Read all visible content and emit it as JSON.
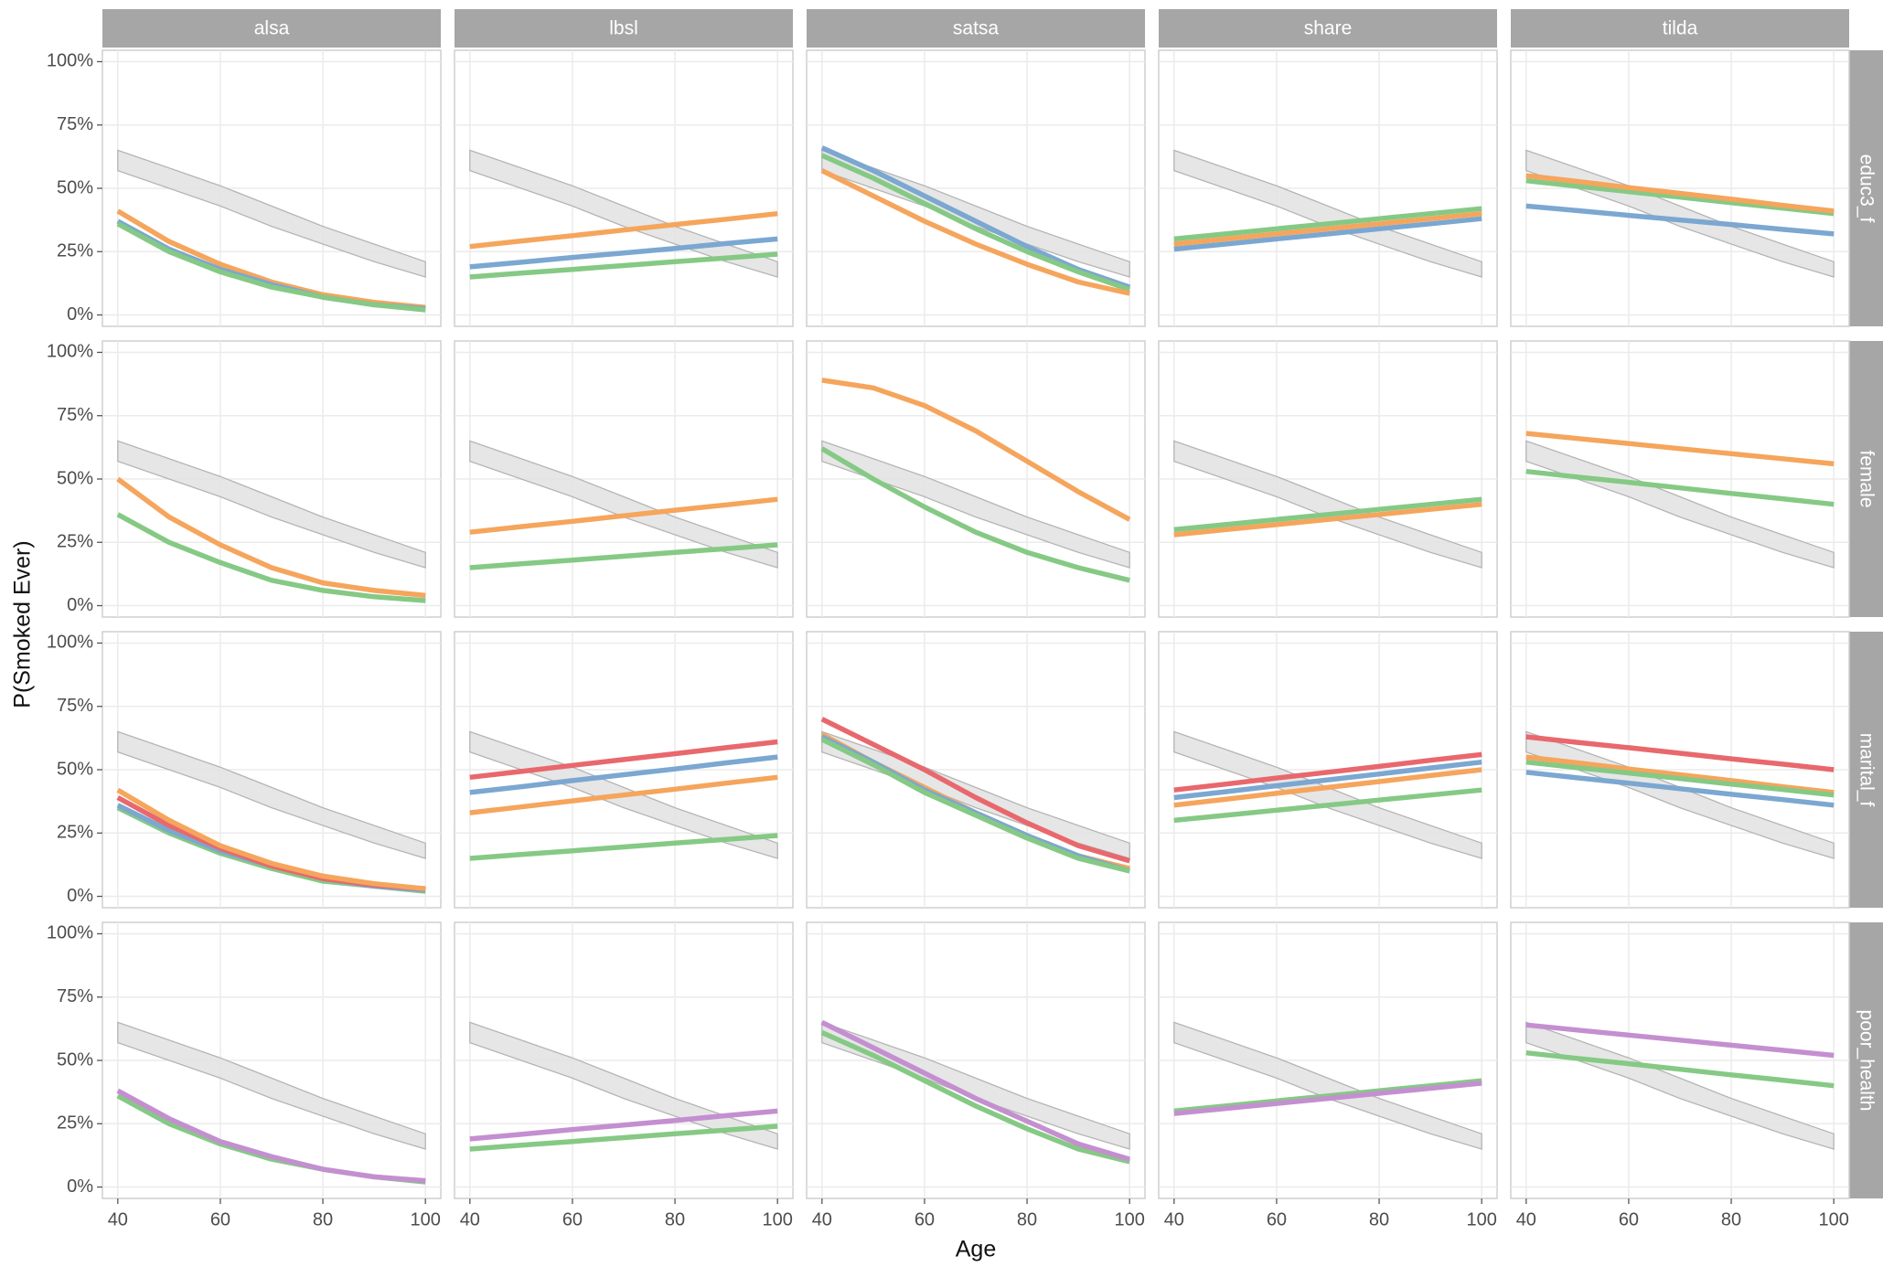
{
  "chart_data": {
    "type": "line",
    "xlabel": "Age",
    "ylabel": "P(Smoked Ever)",
    "columns": [
      "alsa",
      "lbsl",
      "satsa",
      "share",
      "tilda"
    ],
    "rows": [
      "educ3_f",
      "female",
      "marital_f",
      "poor_health"
    ],
    "xlim": [
      37,
      103
    ],
    "ylim": [
      -4.5,
      104.5
    ],
    "xticks": [
      40,
      60,
      80,
      100
    ],
    "yticks": [
      {
        "value": 0,
        "label": "0%"
      },
      {
        "value": 25,
        "label": "25%"
      },
      {
        "value": 50,
        "label": "50%"
      },
      {
        "value": 75,
        "label": "75%"
      },
      {
        "value": 100,
        "label": "100%"
      }
    ],
    "grid": true,
    "x": [
      40,
      50,
      60,
      70,
      80,
      90,
      100
    ],
    "band": {
      "color": "#e3e3e3",
      "lower": [
        57,
        50,
        43,
        35,
        28,
        21,
        15
      ],
      "upper": [
        65,
        58,
        51,
        43,
        35,
        28,
        21
      ]
    },
    "panels": [
      [
        {
          "series": [
            {
              "color": "#f5a55c",
              "values": [
                41,
                29,
                20,
                13,
                8,
                5,
                3
              ]
            },
            {
              "color": "#7ba7d1",
              "values": [
                37,
                26,
                18,
                12,
                7,
                4,
                2.5
              ]
            },
            {
              "color": "#85c985",
              "values": [
                36,
                25,
                17,
                11,
                7,
                4,
                2
              ]
            }
          ]
        },
        {
          "series": [
            {
              "color": "#f5a55c",
              "values": [
                27,
                29.2,
                31.3,
                33.5,
                35.7,
                37.8,
                40
              ]
            },
            {
              "color": "#7ba7d1",
              "values": [
                19,
                20.8,
                22.7,
                24.5,
                26.3,
                28.2,
                30
              ]
            },
            {
              "color": "#85c985",
              "values": [
                15,
                16.5,
                18,
                19.5,
                21,
                22.5,
                24
              ]
            }
          ]
        },
        {
          "series": [
            {
              "color": "#7ba7d1",
              "values": [
                66,
                57,
                47,
                37,
                27,
                18,
                11
              ]
            },
            {
              "color": "#85c985",
              "values": [
                63,
                54,
                44,
                34,
                25,
                17,
                10
              ]
            },
            {
              "color": "#f5a55c",
              "values": [
                57,
                47,
                37,
                28,
                20,
                13,
                8.5
              ]
            }
          ]
        },
        {
          "series": [
            {
              "color": "#7ba7d1",
              "values": [
                26,
                28,
                30,
                32,
                34,
                36,
                38
              ]
            },
            {
              "color": "#f5a55c",
              "values": [
                28,
                30,
                32,
                34,
                36,
                38,
                40
              ]
            },
            {
              "color": "#85c985",
              "values": [
                30,
                32,
                34,
                36,
                38,
                40,
                42
              ]
            }
          ]
        },
        {
          "series": [
            {
              "color": "#7ba7d1",
              "values": [
                43,
                41.2,
                39.3,
                37.5,
                35.7,
                33.8,
                32
              ]
            },
            {
              "color": "#85c985",
              "values": [
                53,
                50.8,
                48.7,
                46.5,
                44.3,
                42.2,
                40
              ]
            },
            {
              "color": "#f5a55c",
              "values": [
                55,
                52.7,
                50.3,
                48,
                45.7,
                43.3,
                41
              ]
            }
          ]
        }
      ],
      [
        {
          "series": [
            {
              "color": "#f5a55c",
              "values": [
                50,
                35,
                24,
                15,
                9,
                6,
                4
              ]
            },
            {
              "color": "#85c985",
              "values": [
                36,
                25,
                17,
                10,
                6,
                3.5,
                2
              ]
            }
          ]
        },
        {
          "series": [
            {
              "color": "#f5a55c",
              "values": [
                29,
                31.2,
                33.3,
                35.5,
                37.7,
                39.8,
                42
              ]
            },
            {
              "color": "#85c985",
              "values": [
                15,
                16.5,
                18,
                19.5,
                21,
                22.5,
                24
              ]
            }
          ]
        },
        {
          "series": [
            {
              "color": "#f5a55c",
              "values": [
                89,
                86,
                79,
                69,
                57,
                45,
                34
              ]
            },
            {
              "color": "#85c985",
              "values": [
                62,
                50,
                39,
                29,
                21,
                15,
                10
              ]
            }
          ]
        },
        {
          "series": [
            {
              "color": "#f5a55c",
              "values": [
                28,
                30,
                32,
                34,
                36,
                38,
                40
              ]
            },
            {
              "color": "#85c985",
              "values": [
                30,
                32,
                34,
                36,
                38,
                40,
                42
              ]
            }
          ]
        },
        {
          "series": [
            {
              "color": "#f5a55c",
              "values": [
                68,
                66,
                64,
                62,
                60,
                58,
                56
              ]
            },
            {
              "color": "#85c985",
              "values": [
                53,
                50.8,
                48.7,
                46.5,
                44.3,
                42.2,
                40
              ]
            }
          ]
        }
      ],
      [
        {
          "series": [
            {
              "color": "#85c985",
              "values": [
                35,
                25,
                17,
                11,
                6,
                4,
                2
              ]
            },
            {
              "color": "#7ba7d1",
              "values": [
                36,
                26,
                18,
                12,
                7,
                4,
                2.5
              ]
            },
            {
              "color": "#e8686d",
              "values": [
                39,
                28,
                19,
                12,
                7,
                4.5,
                3
              ]
            },
            {
              "color": "#f5a55c",
              "values": [
                42,
                30,
                20,
                13,
                8,
                5,
                3
              ]
            }
          ]
        },
        {
          "series": [
            {
              "color": "#e8686d",
              "values": [
                47,
                49.3,
                51.7,
                54,
                56.3,
                58.7,
                61
              ]
            },
            {
              "color": "#7ba7d1",
              "values": [
                41,
                43.3,
                45.7,
                48,
                50.3,
                52.7,
                55
              ]
            },
            {
              "color": "#f5a55c",
              "values": [
                33,
                35.3,
                37.7,
                40,
                42.3,
                44.7,
                47
              ]
            },
            {
              "color": "#85c985",
              "values": [
                15,
                16.5,
                18,
                19.5,
                21,
                22.5,
                24
              ]
            }
          ]
        },
        {
          "series": [
            {
              "color": "#e8686d",
              "values": [
                70,
                60,
                50,
                39,
                29,
                20,
                14
              ]
            },
            {
              "color": "#f5a55c",
              "values": [
                64,
                53,
                43,
                33,
                24,
                16,
                11
              ]
            },
            {
              "color": "#7ba7d1",
              "values": [
                63,
                53,
                42,
                33,
                24,
                16,
                10
              ]
            },
            {
              "color": "#85c985",
              "values": [
                62,
                52,
                41,
                32,
                23,
                15,
                10
              ]
            }
          ]
        },
        {
          "series": [
            {
              "color": "#e8686d",
              "values": [
                42,
                44.3,
                46.7,
                49,
                51.3,
                53.7,
                56
              ]
            },
            {
              "color": "#7ba7d1",
              "values": [
                39,
                41.3,
                43.7,
                46,
                48.3,
                50.7,
                53
              ]
            },
            {
              "color": "#f5a55c",
              "values": [
                36,
                38.3,
                40.7,
                43,
                45.3,
                47.7,
                50
              ]
            },
            {
              "color": "#85c985",
              "values": [
                30,
                32,
                34,
                36,
                38,
                40,
                42
              ]
            }
          ]
        },
        {
          "series": [
            {
              "color": "#e8686d",
              "values": [
                63,
                60.8,
                58.7,
                56.5,
                54.3,
                52.2,
                50
              ]
            },
            {
              "color": "#f5a55c",
              "values": [
                55,
                52.7,
                50.3,
                48,
                45.7,
                43.3,
                41
              ]
            },
            {
              "color": "#85c985",
              "values": [
                53,
                50.8,
                48.7,
                46.5,
                44.3,
                42.2,
                40
              ]
            },
            {
              "color": "#7ba7d1",
              "values": [
                49,
                46.8,
                44.7,
                42.5,
                40.3,
                38.2,
                36
              ]
            }
          ]
        }
      ],
      [
        {
          "series": [
            {
              "color": "#85c985",
              "values": [
                36,
                25,
                17,
                11,
                7,
                4,
                2
              ]
            },
            {
              "color": "#c48fd0",
              "values": [
                38,
                27,
                18,
                12,
                7,
                4,
                2.5
              ]
            }
          ]
        },
        {
          "series": [
            {
              "color": "#c48fd0",
              "values": [
                19,
                20.8,
                22.7,
                24.5,
                26.3,
                28.2,
                30
              ]
            },
            {
              "color": "#85c985",
              "values": [
                15,
                16.5,
                18,
                19.5,
                21,
                22.5,
                24
              ]
            }
          ]
        },
        {
          "series": [
            {
              "color": "#85c985",
              "values": [
                61,
                52,
                42,
                32,
                23,
                15,
                10
              ]
            },
            {
              "color": "#c48fd0",
              "values": [
                65,
                55,
                45,
                35,
                26,
                17,
                11
              ]
            }
          ]
        },
        {
          "series": [
            {
              "color": "#85c985",
              "values": [
                30,
                32,
                34,
                36,
                38,
                40,
                42
              ]
            },
            {
              "color": "#c48fd0",
              "values": [
                29,
                31,
                33,
                35,
                37,
                39,
                41
              ]
            }
          ]
        },
        {
          "series": [
            {
              "color": "#c48fd0",
              "values": [
                64,
                62,
                60,
                58,
                56,
                54,
                52
              ]
            },
            {
              "color": "#85c985",
              "values": [
                53,
                50.8,
                48.7,
                46.5,
                44.3,
                42.2,
                40
              ]
            }
          ]
        }
      ]
    ]
  }
}
